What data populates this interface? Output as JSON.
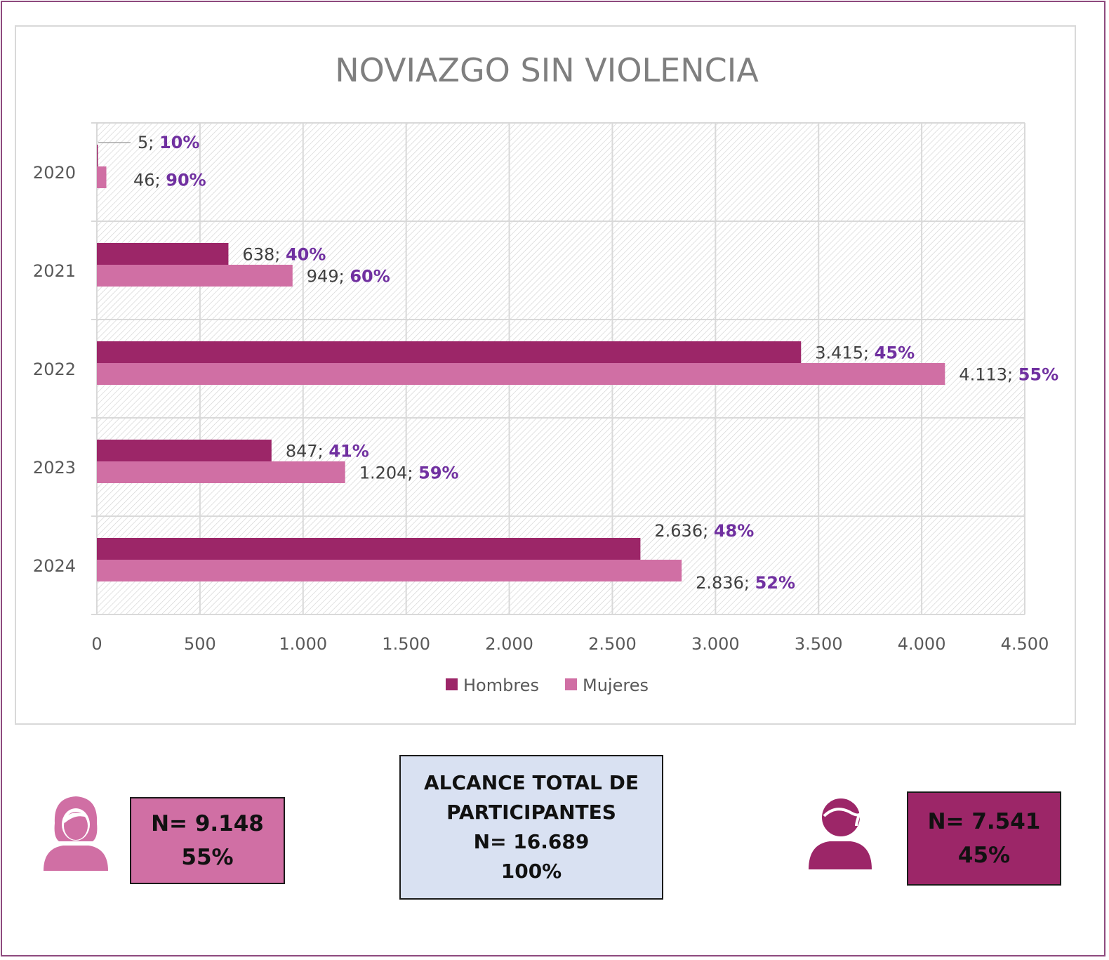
{
  "chart_data": {
    "type": "bar",
    "orientation": "horizontal",
    "title": "NOVIAZGO SIN VIOLENCIA",
    "categories": [
      "2020",
      "2021",
      "2022",
      "2023",
      "2024"
    ],
    "series": [
      {
        "name": "Hombres",
        "color": "#9c2668",
        "values": [
          5,
          638,
          3415,
          847,
          2636
        ],
        "value_labels": [
          "5",
          "638",
          "3.415",
          "847",
          "2.636"
        ],
        "percent_labels": [
          "10%",
          "40%",
          "45%",
          "41%",
          "48%"
        ]
      },
      {
        "name": "Mujeres",
        "color": "#d06fa4",
        "values": [
          46,
          949,
          4113,
          1204,
          2836
        ],
        "value_labels": [
          "46",
          "949",
          "4.113",
          "1.204",
          "2.836"
        ],
        "percent_labels": [
          "90%",
          "60%",
          "55%",
          "59%",
          "52%"
        ]
      }
    ],
    "xlim": [
      0,
      4500
    ],
    "xticks": [
      "0",
      "500",
      "1.000",
      "1.500",
      "2.000",
      "2.500",
      "3.000",
      "3.500",
      "4.000",
      "4.500"
    ],
    "grid": true,
    "legend": "bottom"
  },
  "summary": {
    "women": {
      "icon": "woman-icon",
      "n": "N= 9.148",
      "pct": "55%"
    },
    "total": {
      "line1": "ALCANCE TOTAL DE",
      "line2": "PARTICIPANTES",
      "n": "N= 16.689",
      "pct": "100%"
    },
    "men": {
      "icon": "man-icon",
      "n": "N= 7.541",
      "pct": "45%"
    }
  },
  "colors": {
    "hombres": "#9c2668",
    "mujeres": "#d06fa4",
    "frame": "#8e4a7e",
    "percent": "#7030a0"
  }
}
